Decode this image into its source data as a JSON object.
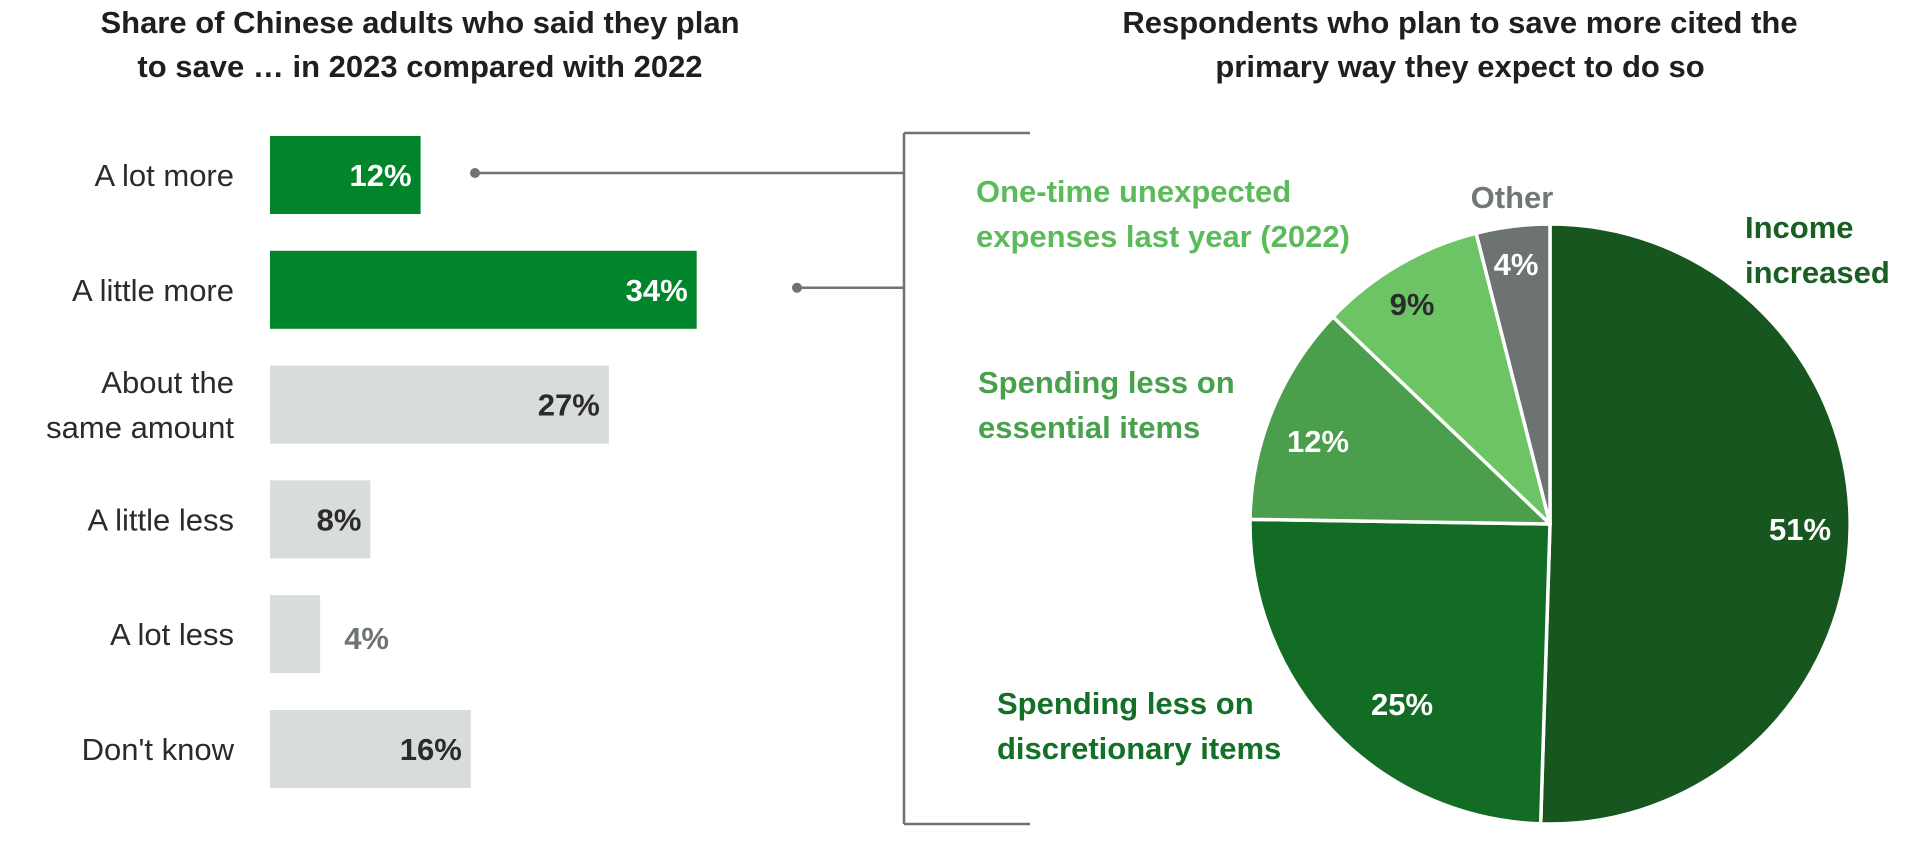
{
  "chart_data": [
    {
      "type": "bar",
      "orientation": "horizontal",
      "title_lines": [
        "Share of Chinese adults who said they plan",
        "to save … in 2023 compared with 2022"
      ],
      "categories": [
        {
          "lines": [
            "A lot more"
          ],
          "value": 12,
          "label": "12%",
          "highlight": true
        },
        {
          "lines": [
            "A little more"
          ],
          "value": 34,
          "label": "34%",
          "highlight": true
        },
        {
          "lines": [
            "About the",
            "same amount"
          ],
          "value": 27,
          "label": "27%",
          "highlight": false
        },
        {
          "lines": [
            "A little less"
          ],
          "value": 8,
          "label": "8%",
          "highlight": false
        },
        {
          "lines": [
            "A lot less"
          ],
          "value": 4,
          "label": "4%",
          "highlight": false
        },
        {
          "lines": [
            "Don't know"
          ],
          "value": 16,
          "label": "16%",
          "highlight": false
        }
      ],
      "colors": {
        "highlight": "#00852a",
        "muted": "#d9dcdc",
        "label_inside_highlight": "#ffffff",
        "label_inside_muted": "#2b2b2b",
        "label_outside": "#6e7374"
      }
    },
    {
      "type": "pie",
      "title_lines": [
        "Respondents who plan to save more cited the",
        "primary way they expect to do so"
      ],
      "slices": [
        {
          "name_lines": [
            "Income",
            "increased"
          ],
          "value": 51,
          "label": "51%",
          "color": "#17571f",
          "label_color": "#1a5e22",
          "pct_color": "#ffffff"
        },
        {
          "name_lines": [
            "Spending less on",
            "discretionary items"
          ],
          "value": 25,
          "label": "25%",
          "color": "#126c23",
          "label_color": "#137027",
          "pct_color": "#ffffff"
        },
        {
          "name_lines": [
            "Spending less on",
            "essential items"
          ],
          "value": 12,
          "label": "12%",
          "color": "#4a9e4c",
          "label_color": "#49a04d",
          "pct_color": "#ffffff"
        },
        {
          "name_lines": [
            "One-time unexpected",
            "expenses last year (2022)"
          ],
          "value": 9,
          "label": "9%",
          "color": "#6cc464",
          "label_color": "#5bbb5a",
          "pct_color": "#2b2b2b"
        },
        {
          "name_lines": [
            "Other"
          ],
          "value": 4,
          "label": "4%",
          "color": "#6d7373",
          "label_color": "#717777",
          "pct_color": "#ffffff"
        }
      ]
    }
  ],
  "colors": {
    "connector": "#6e7374",
    "title": "#1f1f1f"
  }
}
